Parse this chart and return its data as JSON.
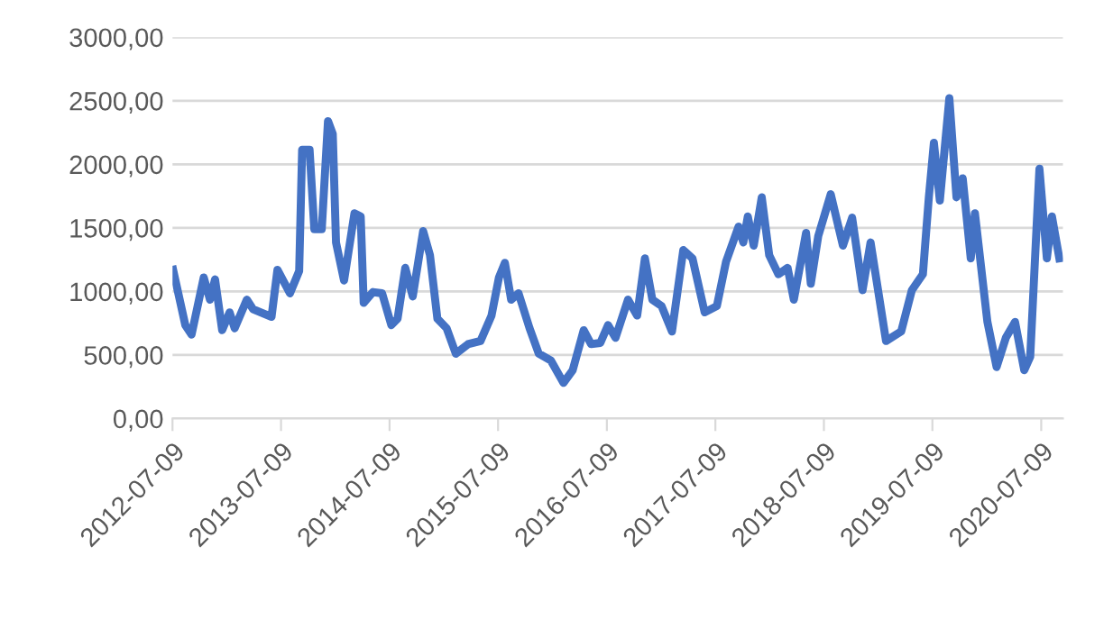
{
  "chart_data": {
    "type": "line",
    "grid": "y",
    "color": "#4472c4",
    "marker": "none",
    "line_style": "solid",
    "x": [
      "2012-07-11",
      "2012-08-21",
      "2012-09-11",
      "2012-10-22",
      "2012-11-12",
      "2012-11-29",
      "2012-12-23",
      "2013-01-17",
      "2013-02-03",
      "2013-03-16",
      "2013-04-06",
      "2013-06-07",
      "2013-06-27",
      "2013-08-08",
      "2013-09-08",
      "2013-09-18",
      "2013-10-13",
      "2013-10-29",
      "2013-11-23",
      "2013-12-14",
      "2013-12-30",
      "2014-01-10",
      "2014-02-06",
      "2014-03-13",
      "2014-04-03",
      "2014-04-13",
      "2014-05-14",
      "2014-06-14",
      "2014-07-15",
      "2014-08-05",
      "2014-08-31",
      "2014-09-25",
      "2014-10-30",
      "2014-11-22",
      "2014-12-17",
      "2015-01-17",
      "2015-02-17",
      "2015-03-30",
      "2015-05-11",
      "2015-06-17",
      "2015-07-12",
      "2015-08-01",
      "2015-08-22",
      "2015-09-16",
      "2015-10-23",
      "2015-11-23",
      "2016-01-03",
      "2016-02-14",
      "2016-03-16",
      "2016-04-22",
      "2016-05-17",
      "2016-06-17",
      "2016-07-13",
      "2016-08-07",
      "2016-09-18",
      "2016-10-19",
      "2016-11-14",
      "2016-12-09",
      "2017-01-09",
      "2017-02-13",
      "2017-03-23",
      "2017-04-23",
      "2017-06-03",
      "2017-07-14",
      "2017-08-14",
      "2017-09-25",
      "2017-10-11",
      "2017-10-26",
      "2017-11-15",
      "2017-12-12",
      "2018-01-06",
      "2018-02-06",
      "2018-03-09",
      "2018-03-30",
      "2018-05-10",
      "2018-05-26",
      "2018-06-20",
      "2018-08-01",
      "2018-09-11",
      "2018-10-12",
      "2018-11-16",
      "2018-12-13",
      "2019-02-03",
      "2019-03-26",
      "2019-05-01",
      "2019-06-07",
      "2019-06-27",
      "2019-07-14",
      "2019-08-03",
      "2019-09-04",
      "2019-09-28",
      "2019-10-19",
      "2019-11-15",
      "2019-11-29",
      "2020-01-10",
      "2020-02-10",
      "2020-03-12",
      "2020-04-12",
      "2020-05-13",
      "2020-06-02",
      "2020-07-03",
      "2020-07-28",
      "2020-08-14",
      "2020-09-08"
    ],
    "values": [
      1170,
      735,
      660,
      1110,
      935,
      1095,
      695,
      835,
      710,
      935,
      860,
      800,
      1170,
      985,
      1160,
      2115,
      2115,
      1490,
      1490,
      2340,
      2240,
      1385,
      1085,
      1615,
      1590,
      910,
      995,
      985,
      735,
      785,
      1185,
      960,
      1475,
      1285,
      785,
      710,
      510,
      585,
      610,
      810,
      1110,
      1225,
      935,
      985,
      710,
      510,
      455,
      280,
      380,
      695,
      585,
      595,
      735,
      635,
      935,
      810,
      1260,
      935,
      885,
      685,
      1325,
      1260,
      835,
      885,
      1235,
      1510,
      1385,
      1590,
      1360,
      1740,
      1285,
      1135,
      1185,
      935,
      1460,
      1060,
      1435,
      1765,
      1360,
      1580,
      1010,
      1385,
      610,
      685,
      1010,
      1135,
      1740,
      2170,
      1715,
      2520,
      1740,
      1890,
      1260,
      1615,
      760,
      405,
      635,
      760,
      380,
      485,
      1965,
      1260,
      1590,
      1260
    ],
    "xlim": [
      "2012-07-09",
      "2020-09-20"
    ],
    "xticks": [
      "2012-07-09",
      "2013-07-09",
      "2014-07-09",
      "2015-07-09",
      "2016-07-09",
      "2017-07-09",
      "2018-07-09",
      "2019-07-09",
      "2020-07-09"
    ],
    "ylim": [
      0,
      3000
    ],
    "yticks": [
      {
        "value": 0,
        "label": "0,00"
      },
      {
        "value": 500,
        "label": "500,00"
      },
      {
        "value": 1000,
        "label": "1000,00"
      },
      {
        "value": 1500,
        "label": "1500,00"
      },
      {
        "value": 2000,
        "label": "2000,00"
      },
      {
        "value": 2500,
        "label": "2500,00"
      },
      {
        "value": 3000,
        "label": "3000,00"
      }
    ]
  }
}
